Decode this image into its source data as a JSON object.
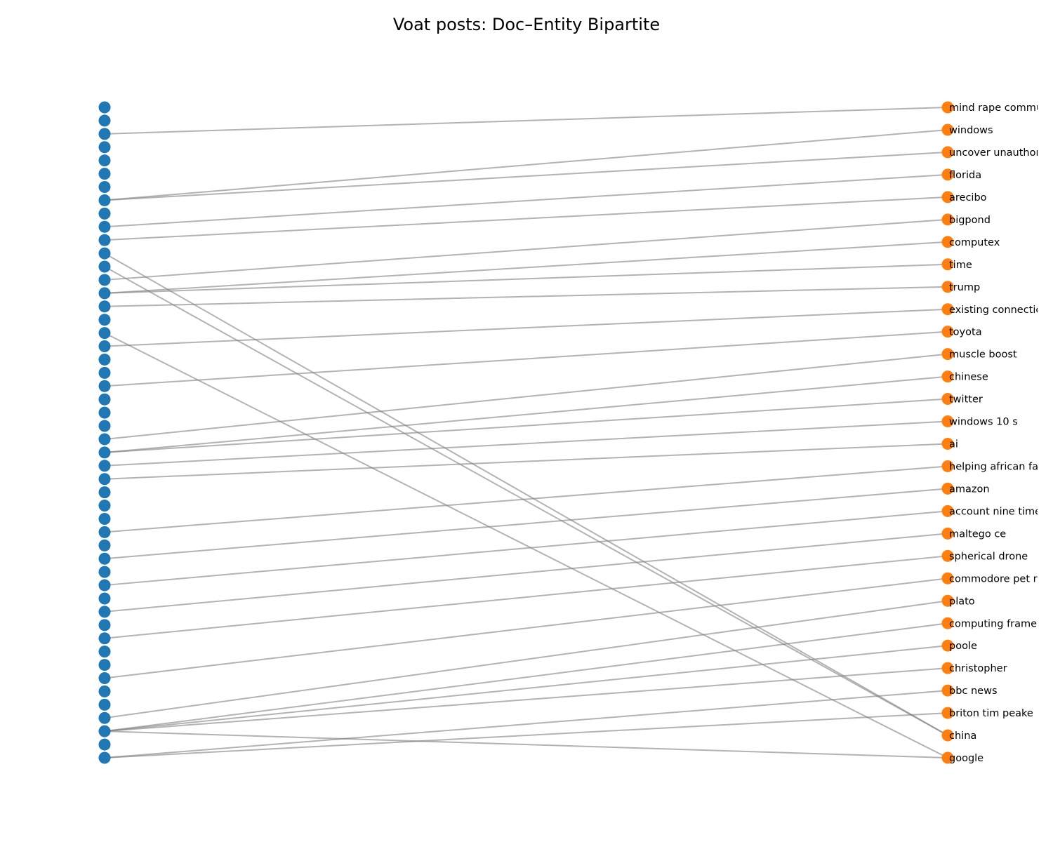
{
  "title": "Voat posts: Doc–Entity Bipartite",
  "colors": {
    "doc_node": "#1f77b4",
    "entity_node": "#ff7f0e",
    "edge": "#808080",
    "background": "#ffffff"
  },
  "doc_count": 50,
  "entities": [
    "mind rape community",
    "windows",
    "uncover unauthorized",
    "florida",
    "arecibo",
    "bigpond",
    "computex",
    "time",
    "trump",
    "existing connection",
    "toyota",
    "muscle boost",
    "chinese",
    "twitter",
    "windows 10 s",
    "ai",
    "helping african farmers",
    "amazon",
    "account nine times",
    "maltego ce",
    "spherical drone",
    "commodore pet restoration",
    "plato",
    "computing framework",
    "poole",
    "christopher",
    "bbc news",
    "briton tim peake",
    "china",
    "google"
  ],
  "edges": [
    [
      2,
      0
    ],
    [
      7,
      1
    ],
    [
      7,
      2
    ],
    [
      9,
      3
    ],
    [
      10,
      4
    ],
    [
      13,
      5
    ],
    [
      14,
      6
    ],
    [
      14,
      7
    ],
    [
      15,
      8
    ],
    [
      18,
      9
    ],
    [
      21,
      10
    ],
    [
      25,
      11
    ],
    [
      26,
      12
    ],
    [
      26,
      13
    ],
    [
      27,
      14
    ],
    [
      28,
      15
    ],
    [
      32,
      16
    ],
    [
      34,
      17
    ],
    [
      36,
      18
    ],
    [
      38,
      19
    ],
    [
      40,
      20
    ],
    [
      43,
      21
    ],
    [
      46,
      22
    ],
    [
      47,
      23
    ],
    [
      47,
      24
    ],
    [
      47,
      25
    ],
    [
      49,
      26
    ],
    [
      49,
      27
    ],
    [
      11,
      28
    ],
    [
      12,
      28
    ],
    [
      17,
      29
    ],
    [
      47,
      29
    ]
  ]
}
